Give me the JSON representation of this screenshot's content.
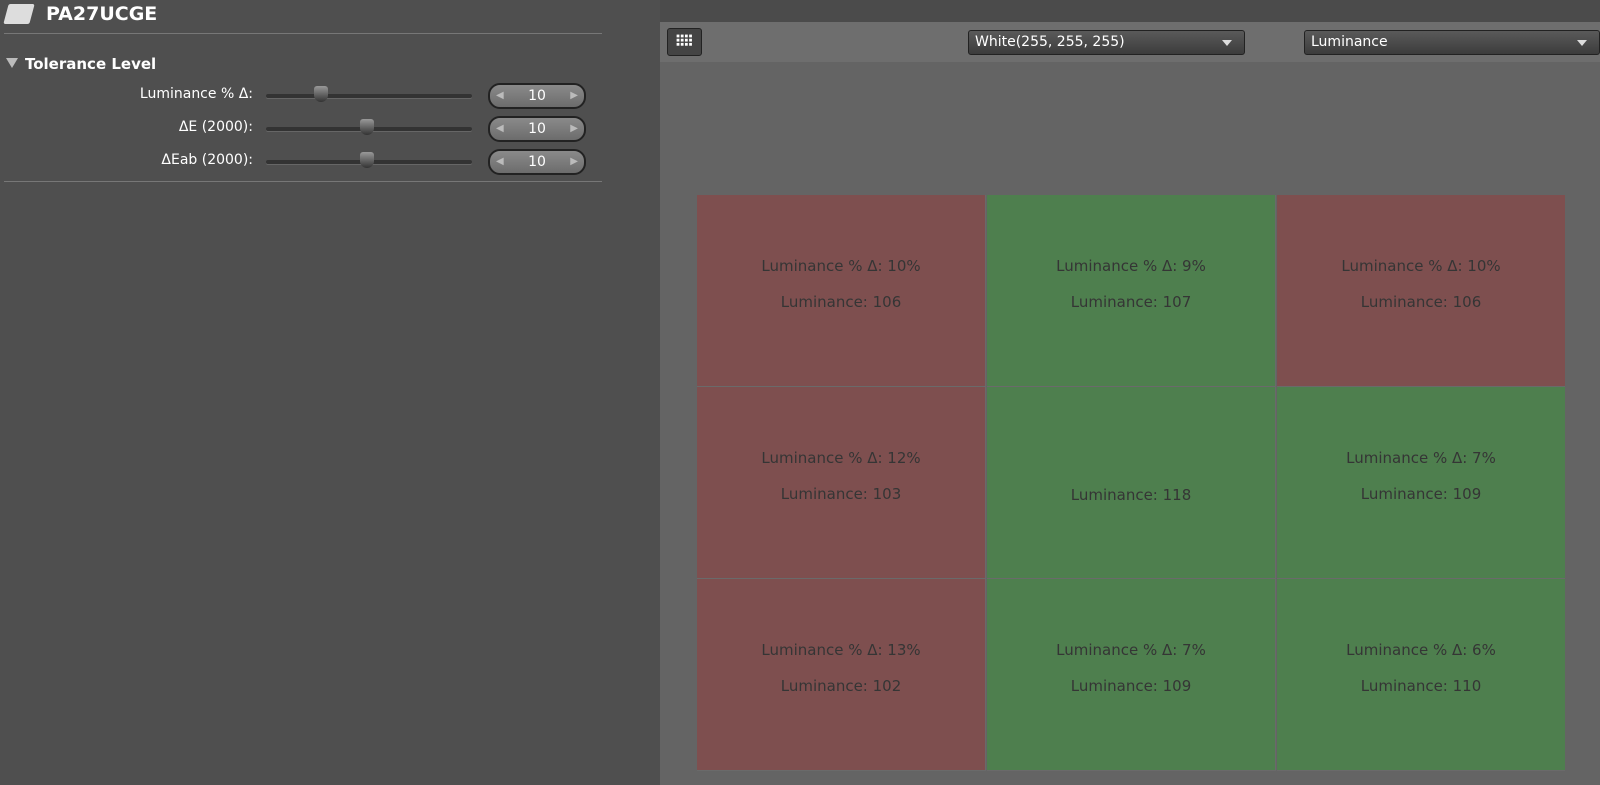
{
  "header": {
    "title": "PA27UCGE"
  },
  "tolerance": {
    "title": "Tolerance Level",
    "rows": [
      {
        "label": "Luminance % Δ:",
        "value": "10"
      },
      {
        "label": "ΔE (2000):",
        "value": "10"
      },
      {
        "label": "ΔEab (2000):",
        "value": "10"
      }
    ]
  },
  "toolbar": {
    "patch": "White(255, 255, 255)",
    "mode": "Luminance"
  },
  "grid": {
    "cells": [
      {
        "color": "#7e4f4f",
        "lines": [
          "Luminance % Δ:  10%",
          "Luminance:  106"
        ]
      },
      {
        "color": "#4e7f4e",
        "lines": [
          "Luminance % Δ:  9%",
          "Luminance:  107"
        ]
      },
      {
        "color": "#7e4f4f",
        "lines": [
          "Luminance % Δ:  10%",
          "Luminance:  106"
        ]
      },
      {
        "color": "#7e4f4f",
        "lines": [
          "Luminance % Δ:  12%",
          "Luminance:  103"
        ]
      },
      {
        "color": "#4e7f4e",
        "lines": [
          "Luminance:  118"
        ]
      },
      {
        "color": "#4e7f4e",
        "lines": [
          "Luminance % Δ:  7%",
          "Luminance:  109"
        ]
      },
      {
        "color": "#7e4f4f",
        "lines": [
          "Luminance % Δ:  13%",
          "Luminance:  102"
        ]
      },
      {
        "color": "#4e7f4e",
        "lines": [
          "Luminance % Δ:  7%",
          "Luminance:  109"
        ]
      },
      {
        "color": "#4e7f4e",
        "lines": [
          "Luminance % Δ:  6%",
          "Luminance:  110"
        ]
      }
    ]
  }
}
